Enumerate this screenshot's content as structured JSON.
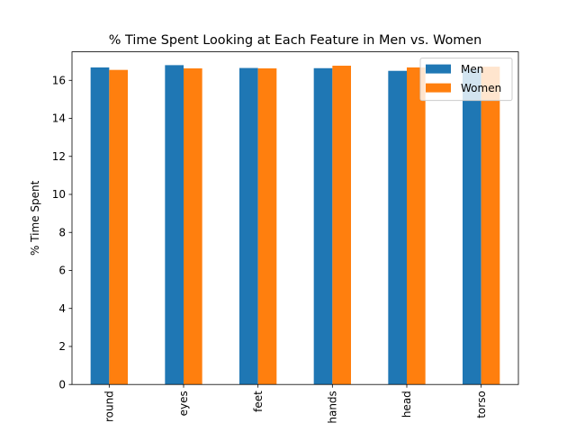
{
  "chart_data": {
    "type": "bar",
    "title": "% Time Spent Looking at Each Feature in Men vs. Women",
    "xlabel": "",
    "ylabel": "% Time Spent",
    "categories": [
      "round",
      "eyes",
      "feet",
      "hands",
      "head",
      "torso"
    ],
    "series": [
      {
        "name": "Men",
        "color": "#1f77b4",
        "values": [
          16.68,
          16.8,
          16.65,
          16.64,
          16.5,
          16.6
        ]
      },
      {
        "name": "Women",
        "color": "#ff7f0e",
        "values": [
          16.55,
          16.63,
          16.63,
          16.77,
          16.68,
          16.72
        ]
      }
    ],
    "ylim": [
      0,
      17.5
    ],
    "yticks": [
      0,
      2,
      4,
      6,
      8,
      10,
      12,
      14,
      16
    ],
    "legend": "top-right",
    "grid": false
  }
}
